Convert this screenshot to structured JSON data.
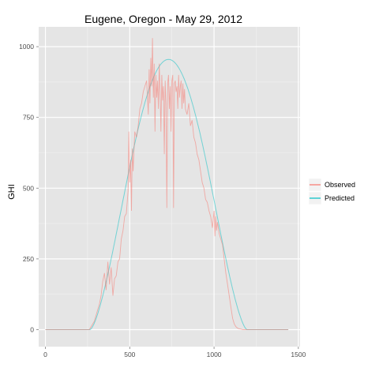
{
  "chart_data": {
    "type": "line",
    "title": "Eugene, Oregon - May 29, 2012",
    "xlabel": "",
    "ylabel": "GHI",
    "xlim": [
      -40,
      1510
    ],
    "ylim": [
      -60,
      1070
    ],
    "x_ticks": [
      0,
      500,
      1000,
      1500
    ],
    "x_tick_labels": [
      "0",
      "500",
      "1000",
      "1500"
    ],
    "y_ticks": [
      0,
      250,
      500,
      750,
      1000
    ],
    "y_tick_labels": [
      "0",
      "250",
      "500",
      "750",
      "1000"
    ],
    "grid": true,
    "legend_position": "right",
    "series": [
      {
        "name": "Observed",
        "color": "#f8766d",
        "x": [
          0,
          260,
          275,
          290,
          300,
          310,
          320,
          330,
          340,
          350,
          360,
          370,
          380,
          390,
          400,
          410,
          420,
          430,
          440,
          450,
          460,
          470,
          480,
          490,
          495,
          500,
          505,
          510,
          515,
          520,
          530,
          540,
          550,
          560,
          570,
          580,
          590,
          600,
          610,
          615,
          620,
          625,
          630,
          635,
          640,
          645,
          650,
          655,
          660,
          665,
          670,
          675,
          680,
          685,
          690,
          695,
          700,
          705,
          710,
          715,
          720,
          725,
          730,
          735,
          740,
          745,
          750,
          755,
          760,
          765,
          770,
          775,
          780,
          785,
          790,
          795,
          800,
          805,
          810,
          815,
          820,
          825,
          830,
          840,
          850,
          860,
          870,
          880,
          890,
          900,
          910,
          920,
          930,
          940,
          950,
          960,
          970,
          980,
          990,
          1000,
          1005,
          1010,
          1015,
          1020,
          1030,
          1040,
          1050,
          1060,
          1070,
          1080,
          1090,
          1100,
          1110,
          1120,
          1130,
          1140,
          1150,
          1160,
          1170,
          1180,
          1200,
          1440
        ],
        "y": [
          0,
          0,
          15,
          30,
          50,
          70,
          90,
          120,
          170,
          200,
          140,
          240,
          160,
          220,
          120,
          180,
          190,
          240,
          250,
          320,
          350,
          400,
          410,
          490,
          700,
          520,
          600,
          420,
          640,
          560,
          700,
          680,
          720,
          780,
          800,
          840,
          860,
          880,
          760,
          920,
          800,
          960,
          860,
          1030,
          820,
          940,
          700,
          900,
          820,
          880,
          780,
          940,
          830,
          700,
          900,
          810,
          860,
          620,
          880,
          800,
          430,
          870,
          900,
          780,
          860,
          700,
          880,
          900,
          430,
          870,
          880,
          840,
          860,
          780,
          900,
          820,
          860,
          880,
          780,
          870,
          800,
          850,
          780,
          760,
          800,
          720,
          740,
          680,
          660,
          620,
          600,
          560,
          520,
          500,
          460,
          450,
          420,
          400,
          360,
          420,
          330,
          400,
          350,
          380,
          340,
          320,
          300,
          250,
          200,
          160,
          120,
          80,
          40,
          20,
          10,
          5,
          3,
          2,
          0,
          0,
          0,
          0
        ]
      },
      {
        "name": "Predicted",
        "color": "#00bfc4",
        "x": [
          0,
          265,
          1195,
          1440
        ],
        "y": [
          0,
          0,
          0,
          0
        ],
        "curve": {
          "type": "sine",
          "start": 265,
          "end": 1195,
          "peak_x": 735,
          "peak_y": 955
        }
      }
    ]
  }
}
